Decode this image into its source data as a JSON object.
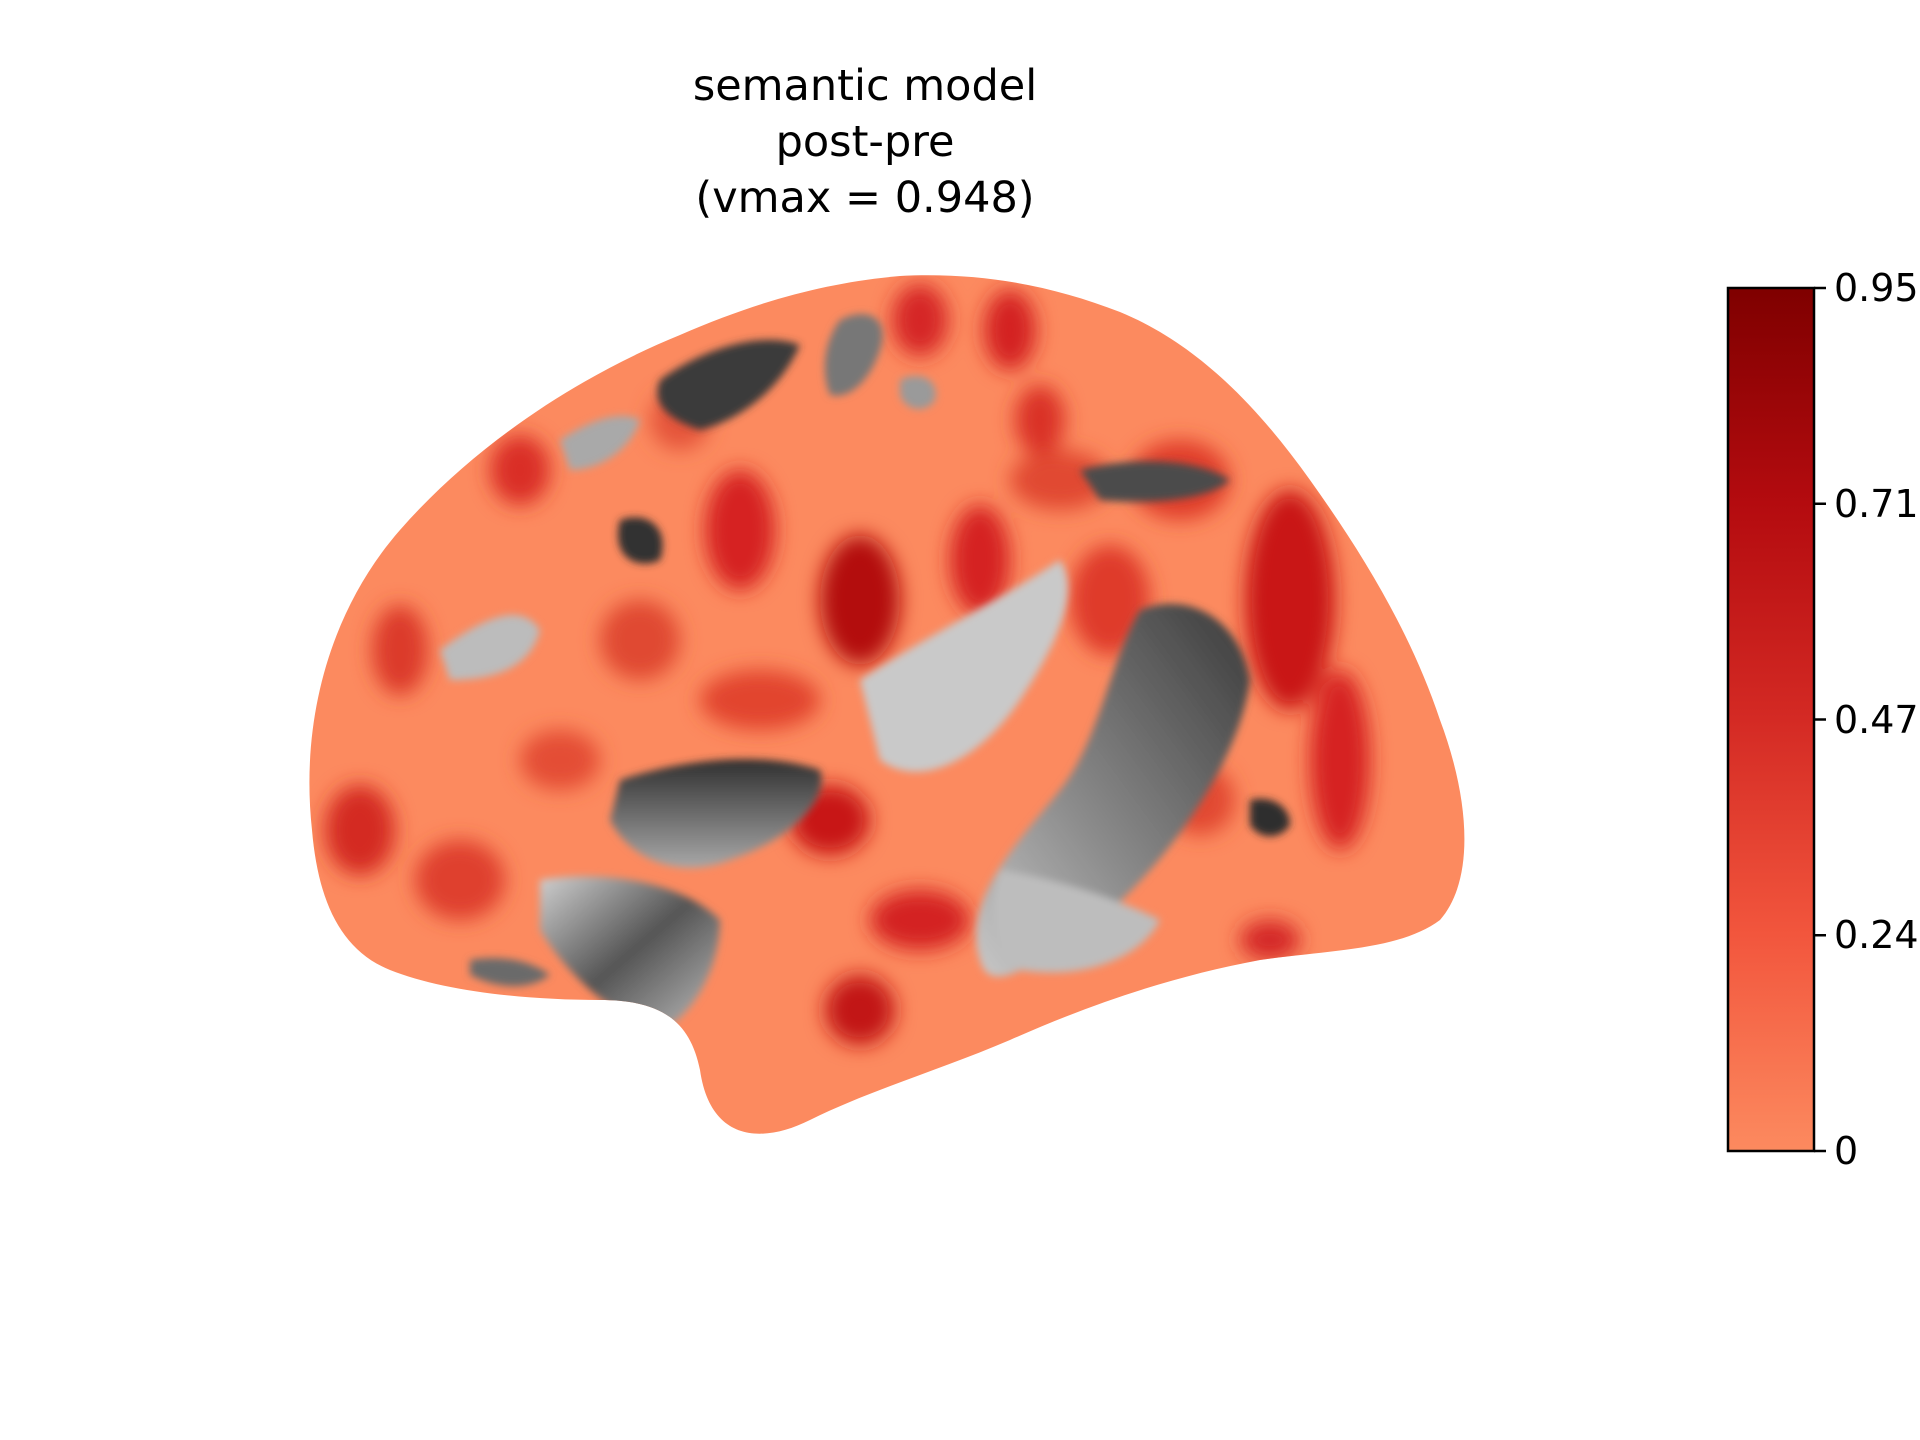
{
  "title": {
    "line1": "semantic model",
    "line2": "post-pre",
    "line3": "(vmax = 0.948)"
  },
  "colorbar": {
    "colormap": "Reds",
    "vmin": 0,
    "vmax": 0.948,
    "ticks": [
      "0",
      "0.24",
      "0.47",
      "0.71",
      "0.95"
    ],
    "low_color": "#fc8a5f",
    "high_color": "#7f0000"
  },
  "surface": {
    "view": "lateral left hemisphere, inflated",
    "below_threshold_color": "grayscale curvature"
  }
}
